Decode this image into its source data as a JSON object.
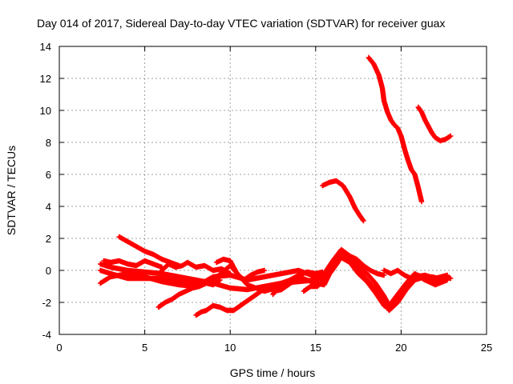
{
  "chart_data": {
    "type": "scatter",
    "title": "Day 014 of 2017, Sidereal Day-to-day VTEC variation (SDTVAR) for receiver guax",
    "xlabel": "GPS time / hours",
    "ylabel": "SDTVAR / TECUs",
    "xlim": [
      0,
      25
    ],
    "ylim": [
      -4,
      14
    ],
    "xticks": [
      0,
      5,
      10,
      15,
      20,
      25
    ],
    "yticks": [
      -4,
      -2,
      0,
      2,
      4,
      6,
      8,
      10,
      12,
      14
    ],
    "grid": true,
    "legend": "none",
    "marker": "+",
    "series": [
      {
        "points": [
          [
            2.4,
            0.4
          ],
          [
            3.0,
            0.2
          ],
          [
            4.0,
            0.0
          ],
          [
            5.0,
            -0.1
          ],
          [
            6.0,
            -0.2
          ],
          [
            7.0,
            -0.4
          ],
          [
            8.0,
            -0.6
          ],
          [
            9.0,
            -0.8
          ],
          [
            10.0,
            -1.1
          ],
          [
            11.0,
            -1.2
          ],
          [
            12.0,
            -1.0
          ],
          [
            13.0,
            -0.8
          ],
          [
            14.0,
            -0.7
          ],
          [
            15.0,
            -0.6
          ],
          [
            15.5,
            -0.4
          ],
          [
            16.0,
            0.4
          ],
          [
            16.5,
            1.1
          ],
          [
            17.0,
            0.6
          ],
          [
            17.5,
            0.0
          ],
          [
            18.0,
            -0.6
          ],
          [
            18.5,
            -1.2
          ],
          [
            19.0,
            -2.0
          ],
          [
            19.3,
            -2.5
          ],
          [
            19.8,
            -2.0
          ],
          [
            20.3,
            -1.2
          ],
          [
            20.8,
            -0.6
          ],
          [
            21.4,
            -0.4
          ],
          [
            22.0,
            -0.6
          ],
          [
            22.7,
            -0.5
          ]
        ]
      },
      {
        "points": [
          [
            2.4,
            -0.8
          ],
          [
            3.0,
            -0.4
          ],
          [
            4.0,
            -0.2
          ],
          [
            5.0,
            -0.4
          ],
          [
            6.0,
            -0.7
          ],
          [
            7.0,
            -0.9
          ],
          [
            8.0,
            -1.0
          ],
          [
            9.0,
            -0.4
          ],
          [
            10.0,
            -0.3
          ],
          [
            11.0,
            -0.6
          ],
          [
            12.0,
            -0.4
          ],
          [
            13.0,
            -0.2
          ],
          [
            14.0,
            0.0
          ],
          [
            15.0,
            -0.4
          ],
          [
            15.5,
            -0.2
          ],
          [
            16.0,
            0.6
          ],
          [
            16.5,
            1.3
          ],
          [
            17.0,
            0.9
          ],
          [
            17.5,
            0.3
          ],
          [
            18.0,
            -0.2
          ],
          [
            18.5,
            -0.8
          ],
          [
            19.0,
            -1.6
          ],
          [
            19.3,
            -2.2
          ],
          [
            19.8,
            -1.5
          ],
          [
            20.3,
            -0.8
          ],
          [
            20.8,
            -0.2
          ],
          [
            21.4,
            -0.6
          ],
          [
            22.0,
            -0.9
          ],
          [
            22.7,
            -0.6
          ]
        ]
      },
      {
        "points": [
          [
            2.4,
            0.0
          ],
          [
            3.0,
            -0.2
          ],
          [
            4.0,
            -0.5
          ],
          [
            5.0,
            -0.5
          ],
          [
            6.0,
            -0.5
          ],
          [
            7.0,
            -0.7
          ],
          [
            8.0,
            -0.9
          ],
          [
            9.0,
            -0.6
          ],
          [
            10.0,
            0.3
          ],
          [
            11.0,
            -0.9
          ],
          [
            12.0,
            -1.3
          ],
          [
            13.0,
            -1.0
          ],
          [
            14.0,
            -0.4
          ],
          [
            15.0,
            -0.8
          ],
          [
            15.5,
            -0.9
          ],
          [
            16.0,
            0.2
          ],
          [
            16.5,
            0.8
          ],
          [
            17.0,
            0.5
          ],
          [
            17.5,
            -0.2
          ],
          [
            18.0,
            -0.7
          ],
          [
            18.5,
            -1.4
          ],
          [
            19.0,
            -2.2
          ],
          [
            19.3,
            -2.4
          ],
          [
            19.8,
            -1.8
          ],
          [
            20.3,
            -1.0
          ],
          [
            20.8,
            -0.4
          ],
          [
            21.4,
            -0.3
          ],
          [
            22.0,
            -0.5
          ],
          [
            22.7,
            -0.3
          ]
        ]
      },
      {
        "points": [
          [
            3.5,
            2.1
          ],
          [
            4.0,
            1.8
          ],
          [
            4.5,
            1.5
          ],
          [
            5.0,
            1.2
          ],
          [
            5.5,
            1.0
          ],
          [
            6.0,
            0.7
          ],
          [
            6.5,
            0.5
          ],
          [
            7.0,
            0.3
          ]
        ]
      },
      {
        "points": [
          [
            2.6,
            0.6
          ],
          [
            3.0,
            0.5
          ],
          [
            3.5,
            0.6
          ],
          [
            4.0,
            0.4
          ],
          [
            4.5,
            0.3
          ],
          [
            5.0,
            0.6
          ],
          [
            5.5,
            0.4
          ],
          [
            6.0,
            0.2
          ]
        ]
      },
      {
        "points": [
          [
            6.0,
            0.0
          ],
          [
            6.4,
            0.4
          ],
          [
            6.8,
            0.2
          ],
          [
            7.2,
            0.3
          ],
          [
            7.5,
            0.5
          ],
          [
            8.0,
            0.2
          ],
          [
            8.5,
            0.3
          ],
          [
            9.0,
            0.0
          ],
          [
            9.5,
            0.1
          ],
          [
            10.0,
            -0.2
          ]
        ]
      },
      {
        "points": [
          [
            5.8,
            -2.3
          ],
          [
            6.2,
            -2.0
          ],
          [
            6.6,
            -1.8
          ],
          [
            7.0,
            -1.5
          ],
          [
            7.4,
            -1.3
          ],
          [
            7.8,
            -1.1
          ],
          [
            8.2,
            -1.0
          ],
          [
            8.6,
            -0.8
          ],
          [
            9.0,
            -0.9
          ],
          [
            9.4,
            -0.6
          ]
        ]
      },
      {
        "points": [
          [
            8.0,
            -2.8
          ],
          [
            8.3,
            -2.6
          ],
          [
            8.6,
            -2.5
          ],
          [
            9.0,
            -2.2
          ],
          [
            9.4,
            -2.3
          ],
          [
            9.8,
            -2.5
          ],
          [
            10.2,
            -2.5
          ],
          [
            10.6,
            -2.2
          ],
          [
            11.0,
            -1.9
          ],
          [
            11.4,
            -1.6
          ],
          [
            11.8,
            -1.3
          ],
          [
            12.2,
            -1.1
          ],
          [
            12.6,
            -1.3
          ],
          [
            13.0,
            -1.2
          ],
          [
            13.4,
            -0.9
          ],
          [
            13.8,
            -0.6
          ]
        ]
      },
      {
        "points": [
          [
            9.2,
            0.5
          ],
          [
            9.6,
            0.7
          ],
          [
            10.0,
            0.6
          ],
          [
            10.4,
            -0.2
          ],
          [
            10.8,
            -0.6
          ],
          [
            11.2,
            -0.3
          ],
          [
            11.6,
            -0.1
          ],
          [
            12.0,
            0.0
          ]
        ]
      },
      {
        "points": [
          [
            12.5,
            -1.5
          ],
          [
            13.0,
            -0.8
          ],
          [
            13.5,
            -0.6
          ],
          [
            14.0,
            -0.3
          ],
          [
            14.5,
            -0.1
          ],
          [
            15.0,
            -0.2
          ],
          [
            15.4,
            -0.1
          ]
        ]
      },
      {
        "points": [
          [
            14.3,
            -1.3
          ],
          [
            14.7,
            -1.0
          ],
          [
            15.1,
            -1.0
          ],
          [
            15.5,
            -0.6
          ],
          [
            15.9,
            -0.1
          ],
          [
            16.3,
            0.5
          ],
          [
            16.6,
            1.2
          ],
          [
            17.0,
            0.9
          ],
          [
            17.4,
            0.7
          ],
          [
            17.8,
            0.3
          ],
          [
            18.2,
            0.0
          ],
          [
            18.6,
            -0.2
          ],
          [
            19.0,
            -0.3
          ]
        ]
      },
      {
        "points": [
          [
            15.4,
            5.3
          ],
          [
            15.8,
            5.5
          ],
          [
            16.2,
            5.6
          ],
          [
            16.6,
            5.3
          ],
          [
            17.0,
            4.6
          ],
          [
            17.3,
            3.9
          ],
          [
            17.6,
            3.4
          ],
          [
            17.8,
            3.1
          ]
        ]
      },
      {
        "points": [
          [
            18.1,
            13.3
          ],
          [
            18.4,
            12.9
          ],
          [
            18.7,
            12.2
          ],
          [
            18.9,
            11.4
          ],
          [
            19.0,
            10.6
          ],
          [
            19.2,
            9.9
          ],
          [
            19.4,
            9.4
          ],
          [
            19.6,
            9.1
          ],
          [
            19.8,
            8.9
          ],
          [
            20.0,
            8.4
          ],
          [
            20.2,
            7.6
          ],
          [
            20.4,
            6.9
          ],
          [
            20.6,
            6.3
          ],
          [
            20.8,
            6.0
          ],
          [
            21.0,
            5.2
          ],
          [
            21.2,
            4.3
          ]
        ]
      },
      {
        "points": [
          [
            21.0,
            10.2
          ],
          [
            21.2,
            9.9
          ],
          [
            21.4,
            9.4
          ],
          [
            21.6,
            9.0
          ],
          [
            21.8,
            8.6
          ],
          [
            22.0,
            8.3
          ],
          [
            22.3,
            8.1
          ],
          [
            22.6,
            8.2
          ],
          [
            22.9,
            8.4
          ]
        ]
      },
      {
        "points": [
          [
            19.0,
            0.0
          ],
          [
            19.4,
            -0.2
          ],
          [
            19.8,
            0.0
          ],
          [
            20.2,
            -0.3
          ],
          [
            20.6,
            -0.5
          ],
          [
            21.0,
            -0.3
          ],
          [
            21.4,
            -0.6
          ],
          [
            21.8,
            -0.4
          ],
          [
            22.2,
            -0.5
          ],
          [
            22.6,
            -0.4
          ],
          [
            22.9,
            -0.5
          ]
        ]
      }
    ]
  }
}
